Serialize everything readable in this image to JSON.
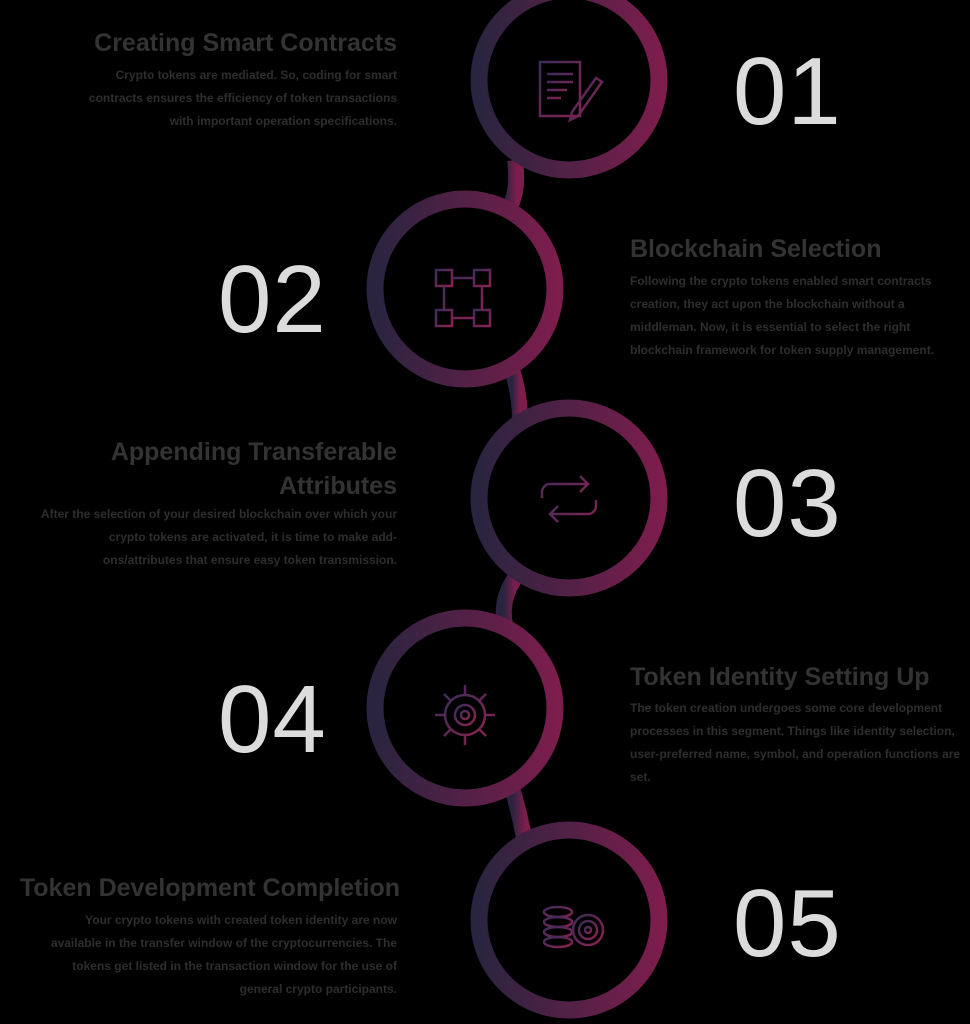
{
  "steps": [
    {
      "number": "01",
      "title": "Creating Smart Contracts",
      "description": "Crypto tokens are mediated. So, coding for smart contracts ensures the efficiency of token transactions with important operation specifications."
    },
    {
      "number": "02",
      "title": "Blockchain Selection",
      "description": "Following the crypto tokens enabled smart contracts creation, they act upon the blockchain without a middleman. Now, it is essential to select the right blockchain framework for token supply management."
    },
    {
      "number": "03",
      "title": "Appending Transferable Attributes",
      "description": "After the selection of your desired blockchain over which your crypto tokens are activated, it is time to make add-ons/attributes that ensure easy token transmission."
    },
    {
      "number": "04",
      "title": "Token Identity Setting Up",
      "description": "The token creation undergoes some core development processes in this segment. Things like identity selection, user-preferred name, symbol, and operation functions are set."
    },
    {
      "number": "05",
      "title": "Token Development Completion",
      "description": "Your crypto tokens with created token identity are now available in the transfer window of the cryptocurrencies. The tokens get listed in the transaction window for the use of general crypto participants."
    }
  ]
}
